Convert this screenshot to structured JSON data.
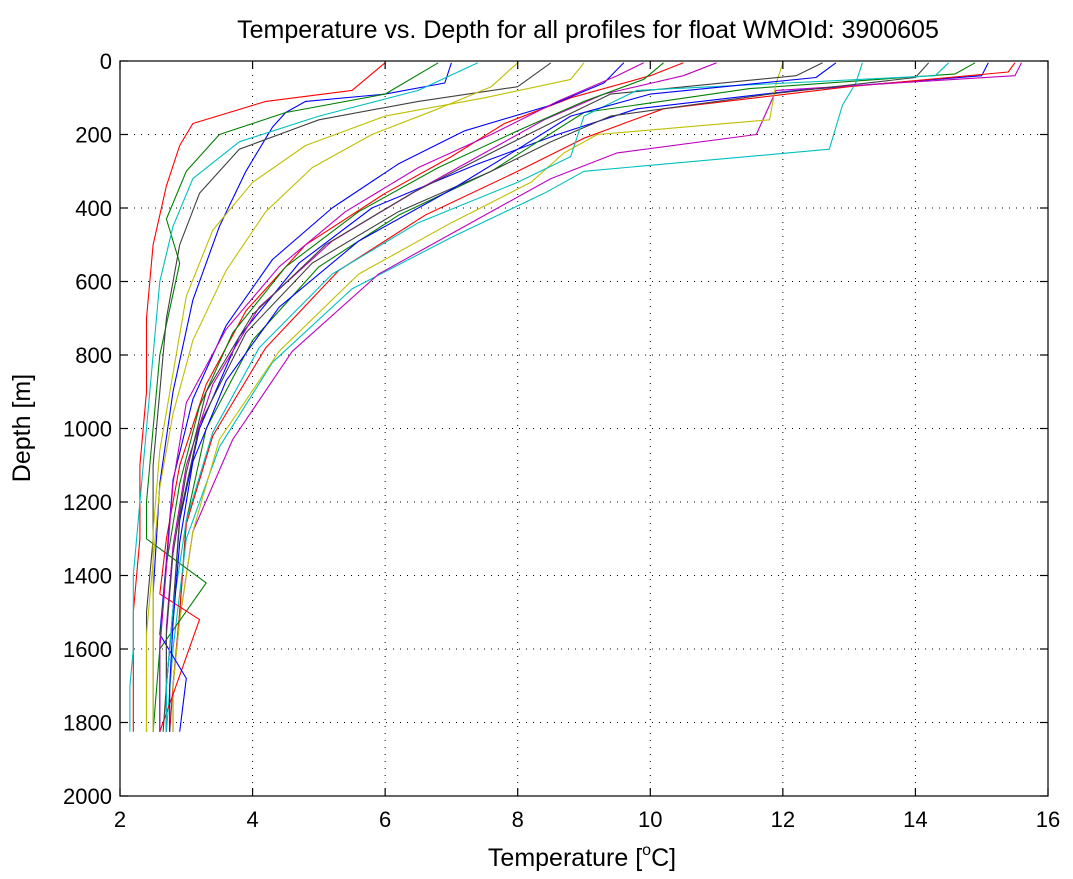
{
  "chart_data": {
    "type": "line",
    "title": "Temperature vs. Depth for all profiles for float WMOId: 3900605",
    "xlabel": "Temperature [",
    "xlabel_superscript": "o",
    "xlabel_unit": "C]",
    "ylabel": "Depth [m]",
    "xlim": [
      2,
      16
    ],
    "ylim": [
      0,
      2000
    ],
    "y_reversed": true,
    "grid": true,
    "xticks": [
      2,
      4,
      6,
      8,
      10,
      12,
      14,
      16
    ],
    "yticks": [
      0,
      200,
      400,
      600,
      800,
      1000,
      1200,
      1400,
      1600,
      1800,
      2000
    ],
    "xtick_labels": [
      "2",
      "4",
      "6",
      "8",
      "10",
      "12",
      "14",
      "16"
    ],
    "ytick_labels": [
      "0",
      "200",
      "400",
      "600",
      "800",
      "1000",
      "1200",
      "1400",
      "1600",
      "1800",
      "2000"
    ],
    "colors": [
      "#0000ff",
      "#008000",
      "#ff0000",
      "#00bfbf",
      "#bf00bf",
      "#bfbf00",
      "#404040"
    ],
    "series": [
      {
        "color": "#0000ff",
        "x": [
          15.1,
          15.0,
          12.2,
          9.8,
          8.6,
          7.4,
          5.8,
          4.7,
          3.8,
          3.2,
          2.9,
          2.8,
          2.7,
          2.7
        ],
        "y": [
          5,
          40,
          80,
          130,
          200,
          280,
          400,
          550,
          750,
          1000,
          1250,
          1500,
          1700,
          1825
        ]
      },
      {
        "color": "#008000",
        "x": [
          14.9,
          14.6,
          11.5,
          9.0,
          8.3,
          7.6,
          6.2,
          5.0,
          4.0,
          3.3,
          3.0,
          2.9,
          2.8,
          2.8
        ],
        "y": [
          5,
          35,
          75,
          140,
          220,
          300,
          420,
          560,
          760,
          1000,
          1250,
          1500,
          1700,
          1825
        ]
      },
      {
        "color": "#ff0000",
        "x": [
          15.5,
          15.4,
          13.0,
          10.2,
          9.0,
          8.0,
          6.6,
          5.3,
          4.2,
          3.4,
          3.0,
          2.9,
          2.8,
          2.75
        ],
        "y": [
          5,
          30,
          70,
          130,
          210,
          300,
          420,
          570,
          780,
          1020,
          1260,
          1500,
          1700,
          1825
        ]
      },
      {
        "color": "#00bfbf",
        "x": [
          13.2,
          13.1,
          12.9,
          12.8,
          12.7,
          9.0,
          8.4,
          7.0,
          5.5,
          4.3,
          3.5,
          3.0,
          2.8,
          2.7
        ],
        "y": [
          5,
          60,
          120,
          180,
          240,
          300,
          360,
          480,
          620,
          820,
          1050,
          1300,
          1600,
          1825
        ]
      },
      {
        "color": "#bf00bf",
        "x": [
          15.6,
          15.5,
          11.9,
          11.6,
          9.5,
          8.5,
          7.4,
          5.9,
          4.6,
          3.7,
          3.1,
          2.9,
          2.8,
          2.8
        ],
        "y": [
          5,
          40,
          80,
          200,
          250,
          320,
          430,
          580,
          790,
          1030,
          1280,
          1520,
          1700,
          1825
        ]
      },
      {
        "color": "#bfbf00",
        "x": [
          12.0,
          11.9,
          11.8,
          9.2,
          8.7,
          8.2,
          7.0,
          5.6,
          4.4,
          3.5,
          3.1,
          2.9,
          2.8,
          2.8
        ],
        "y": [
          5,
          60,
          160,
          200,
          250,
          330,
          440,
          580,
          790,
          1030,
          1280,
          1520,
          1700,
          1825
        ]
      },
      {
        "color": "#404040",
        "x": [
          14.2,
          14.0,
          11.8,
          9.4,
          8.5,
          7.6,
          6.2,
          4.9,
          3.9,
          3.2,
          2.9,
          2.8,
          2.7,
          2.7
        ],
        "y": [
          5,
          45,
          90,
          150,
          220,
          300,
          410,
          550,
          740,
          990,
          1240,
          1490,
          1700,
          1825
        ]
      },
      {
        "color": "#0000ff",
        "x": [
          7.0,
          6.9,
          6.0,
          4.8,
          4.5,
          4.3,
          3.9,
          3.5,
          3.1,
          2.8,
          2.6,
          2.5,
          2.5,
          2.5
        ],
        "y": [
          5,
          60,
          90,
          110,
          140,
          180,
          300,
          450,
          650,
          900,
          1150,
          1450,
          1650,
          1825
        ]
      },
      {
        "color": "#ff0000",
        "x": [
          6.0,
          5.5,
          4.2,
          3.1,
          2.9,
          2.7,
          2.5,
          2.4,
          2.4,
          2.3,
          2.3,
          2.2,
          2.2,
          2.2
        ],
        "y": [
          5,
          80,
          110,
          170,
          230,
          340,
          500,
          700,
          900,
          1100,
          1300,
          1500,
          1700,
          1825
        ]
      },
      {
        "color": "#008000",
        "x": [
          6.8,
          6.0,
          4.5,
          3.5,
          3.0,
          2.7,
          2.9,
          2.6,
          2.5,
          2.4,
          2.4,
          3.3,
          2.6,
          2.5
        ],
        "y": [
          5,
          90,
          140,
          200,
          300,
          430,
          550,
          800,
          1000,
          1200,
          1300,
          1420,
          1600,
          1825
        ]
      },
      {
        "color": "#00bfbf",
        "x": [
          7.4,
          6.5,
          5.0,
          3.8,
          3.1,
          2.8,
          2.6,
          2.5,
          2.4,
          2.3,
          2.2,
          2.2,
          2.15,
          2.15
        ],
        "y": [
          5,
          80,
          150,
          220,
          320,
          450,
          600,
          800,
          1000,
          1200,
          1400,
          1600,
          1700,
          1825
        ]
      },
      {
        "color": "#404040",
        "x": [
          8.5,
          8.0,
          6.5,
          5.0,
          3.8,
          3.2,
          2.9,
          2.7,
          2.6,
          2.5,
          2.5,
          2.4,
          2.4,
          2.4
        ],
        "y": [
          5,
          70,
          110,
          160,
          240,
          360,
          500,
          700,
          900,
          1100,
          1300,
          1500,
          1700,
          1825
        ]
      },
      {
        "color": "#bfbf00",
        "x": [
          9.0,
          8.8,
          7.5,
          6.0,
          4.8,
          4.0,
          3.4,
          3.0,
          2.8,
          2.6,
          2.5,
          2.5,
          2.5,
          2.5
        ],
        "y": [
          5,
          50,
          100,
          150,
          230,
          330,
          460,
          640,
          850,
          1060,
          1280,
          1500,
          1700,
          1825
        ]
      },
      {
        "color": "#ff0000",
        "x": [
          10.5,
          10.0,
          8.8,
          7.8,
          7.0,
          6.0,
          4.8,
          3.9,
          3.3,
          2.9,
          2.7,
          2.6,
          3.2,
          2.6
        ],
        "y": [
          5,
          40,
          100,
          170,
          260,
          360,
          500,
          680,
          880,
          1100,
          1300,
          1450,
          1520,
          1825
        ]
      },
      {
        "color": "#bf00bf",
        "x": [
          11.0,
          10.5,
          9.3,
          8.4,
          7.5,
          6.5,
          5.2,
          4.1,
          3.4,
          3.0,
          2.8,
          2.7,
          2.7,
          2.7
        ],
        "y": [
          5,
          40,
          90,
          160,
          250,
          350,
          490,
          670,
          880,
          1100,
          1320,
          1540,
          1700,
          1825
        ]
      },
      {
        "color": "#0000ff",
        "x": [
          9.6,
          9.3,
          8.5,
          7.2,
          6.2,
          5.2,
          4.3,
          3.6,
          3.1,
          2.8,
          2.7,
          2.6,
          3.0,
          2.9
        ],
        "y": [
          5,
          60,
          120,
          190,
          280,
          400,
          540,
          720,
          920,
          1140,
          1360,
          1560,
          1680,
          1825
        ]
      },
      {
        "color": "#008000",
        "x": [
          10.2,
          9.9,
          9.0,
          8.0,
          6.8,
          5.6,
          4.5,
          3.7,
          3.2,
          2.9,
          2.7,
          2.6,
          2.6,
          2.6
        ],
        "y": [
          5,
          50,
          110,
          190,
          290,
          410,
          560,
          740,
          940,
          1150,
          1370,
          1580,
          1700,
          1825
        ]
      },
      {
        "color": "#404040",
        "x": [
          12.6,
          12.2,
          9.4,
          8.6,
          7.6,
          6.4,
          5.1,
          4.0,
          3.3,
          3.0,
          2.8,
          2.7,
          2.7,
          2.65
        ],
        "y": [
          5,
          40,
          90,
          160,
          250,
          360,
          500,
          690,
          900,
          1120,
          1340,
          1560,
          1700,
          1825
        ]
      },
      {
        "color": "#00bfbf",
        "x": [
          14.5,
          14.3,
          9.8,
          9.0,
          8.8,
          8.0,
          6.5,
          5.2,
          4.1,
          3.4,
          3.0,
          2.8,
          2.7,
          2.7
        ],
        "y": [
          5,
          40,
          80,
          150,
          260,
          330,
          440,
          580,
          780,
          1010,
          1250,
          1490,
          1700,
          1825
        ]
      },
      {
        "color": "#bfbf00",
        "x": [
          8.0,
          7.6,
          6.8,
          5.8,
          4.9,
          4.2,
          3.6,
          3.1,
          2.8,
          2.6,
          2.5,
          2.4,
          2.4,
          2.4
        ],
        "y": [
          5,
          70,
          130,
          200,
          290,
          410,
          570,
          760,
          960,
          1160,
          1360,
          1560,
          1700,
          1825
        ]
      },
      {
        "color": "#bf00bf",
        "x": [
          9.9,
          9.5,
          8.6,
          7.6,
          6.5,
          5.4,
          4.4,
          3.6,
          3.0,
          2.8,
          2.7,
          2.6,
          2.6,
          2.6
        ],
        "y": [
          5,
          40,
          110,
          200,
          290,
          410,
          560,
          730,
          930,
          1150,
          1380,
          1600,
          1720,
          1825
        ]
      },
      {
        "color": "#0000ff",
        "x": [
          12.8,
          12.5,
          10.0,
          8.8,
          8.0,
          7.0,
          5.6,
          4.4,
          3.6,
          3.1,
          2.9,
          2.8,
          2.75,
          2.75
        ],
        "y": [
          5,
          45,
          90,
          150,
          240,
          350,
          490,
          670,
          870,
          1090,
          1310,
          1530,
          1700,
          1825
        ]
      }
    ]
  }
}
